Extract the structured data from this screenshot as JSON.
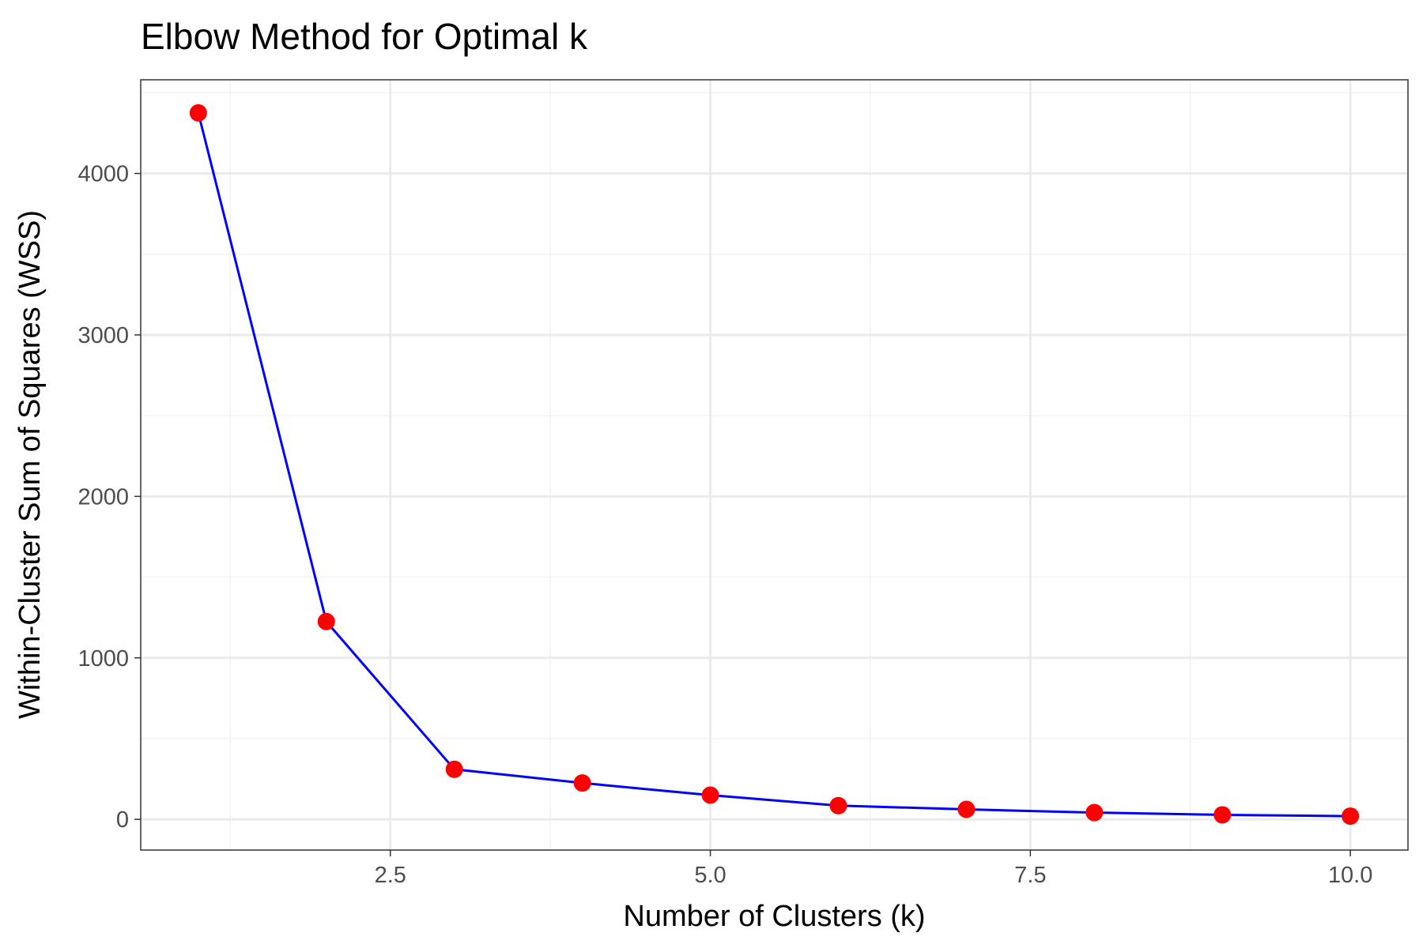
{
  "chart_data": {
    "type": "line",
    "title": "Elbow Method for Optimal k",
    "xlabel": "Number of Clusters (k)",
    "ylabel": "Within-Cluster Sum of Squares (WSS)",
    "xlim": [
      0.55,
      10.45
    ],
    "ylim": [
      -190,
      4580
    ],
    "x_ticks": [
      2.5,
      5.0,
      7.5,
      10.0
    ],
    "x_tick_labels": [
      "2.5",
      "5.0",
      "7.5",
      "10.0"
    ],
    "y_ticks": [
      0,
      1000,
      2000,
      3000,
      4000
    ],
    "y_tick_labels": [
      "0",
      "1000",
      "2000",
      "3000",
      "4000"
    ],
    "grid": true,
    "legend": "none",
    "series": [
      {
        "x": [
          1,
          2,
          3,
          4,
          5,
          6,
          7,
          8,
          9,
          10
        ],
        "y": [
          4375,
          1225,
          310,
          225,
          150,
          85,
          62,
          42,
          28,
          20
        ],
        "line_color": "#0000ff",
        "point_color": "#ff0000"
      }
    ]
  }
}
